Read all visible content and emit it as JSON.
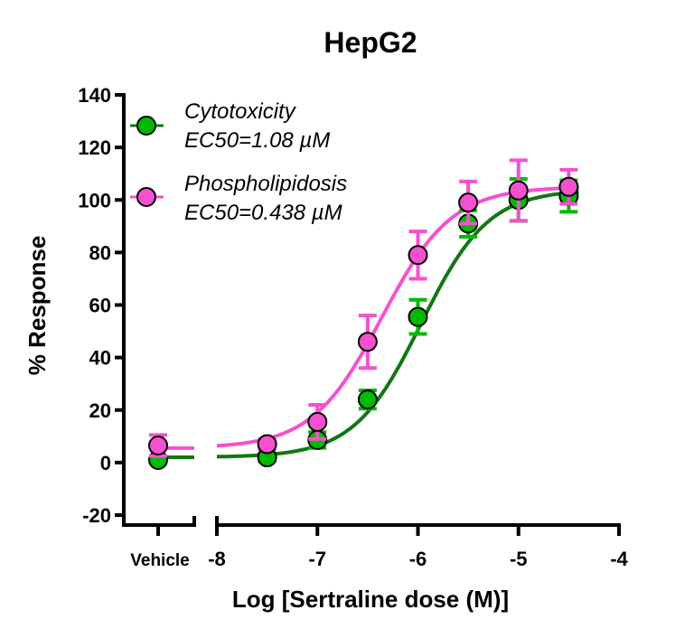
{
  "chart_data": {
    "type": "scatter",
    "title": "HepG2",
    "xlabel": "Log [Sertraline dose (M)]",
    "ylabel": "% Response",
    "xlim": [
      -8,
      -4
    ],
    "ylim": [
      -20,
      140
    ],
    "yticks": [
      -20,
      0,
      20,
      40,
      60,
      80,
      100,
      120,
      140
    ],
    "xticks": [
      -8,
      -7,
      -6,
      -5,
      -4
    ],
    "vehicle_label": "Vehicle",
    "legend_position": "top-left",
    "series": [
      {
        "name": "Cytotoxicity",
        "ec50_label": "EC50=1.08 µM",
        "color": "#00BB00",
        "line_color": "#117711",
        "vehicle": {
          "y": 1,
          "err": 1
        },
        "x": [
          -7.5,
          -7,
          -6.5,
          -6,
          -5.5,
          -5,
          -4.5
        ],
        "y": [
          2,
          8.6,
          24,
          55.5,
          91,
          100,
          101.5
        ],
        "err": [
          1.5,
          3,
          3.5,
          6.5,
          5,
          8,
          6
        ],
        "fit": {
          "bottom": 2,
          "top": 104,
          "logec50": -5.967,
          "hill": 1.3
        }
      },
      {
        "name": "Phospholipidosis",
        "ec50_label": "EC50=0.438 µM",
        "color": "#F550D0",
        "line_color": "#F550D0",
        "vehicle": {
          "y": 6.5,
          "err": 4
        },
        "x": [
          -7.5,
          -7,
          -6.5,
          -6,
          -5.5,
          -5,
          -4.5
        ],
        "y": [
          7,
          15.5,
          46,
          79,
          99,
          103.6,
          105
        ],
        "err": [
          2,
          6.5,
          10,
          9,
          8,
          11.5,
          6.5
        ],
        "fit": {
          "bottom": 5.5,
          "top": 105,
          "logec50": -6.359,
          "hill": 1.25
        }
      }
    ]
  }
}
